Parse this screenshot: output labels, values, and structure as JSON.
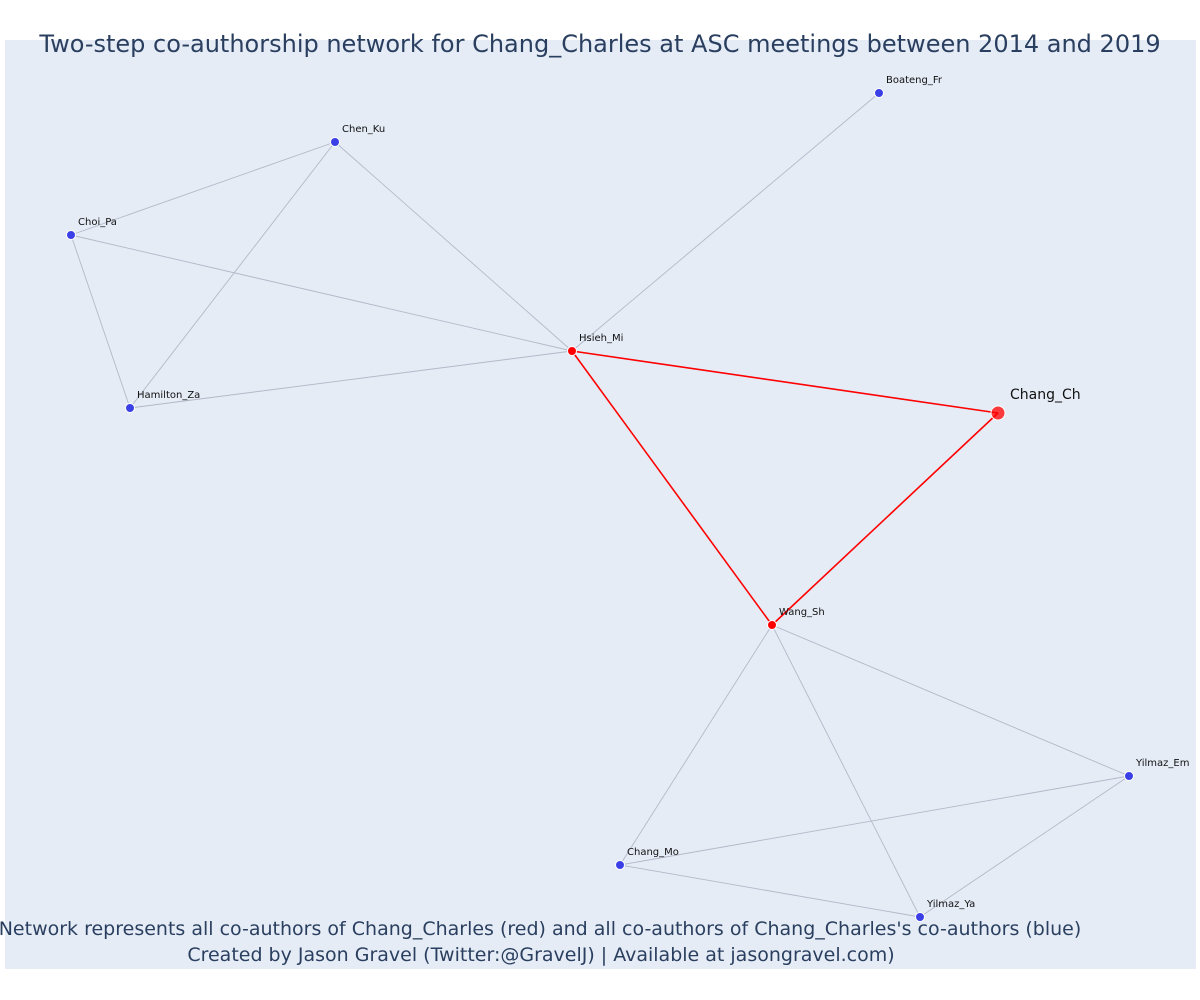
{
  "title": "Two-step co-authorship network for Chang_Charles at ASC meetings between 2014 and 2019",
  "caption": {
    "line1": "Network represents all co-authors of Chang_Charles (red) and all co-authors of Chang_Charles's co-authors (blue)",
    "line2": "Created by Jason Gravel (Twitter:@GravelJ) | Available at jasongravel.com)"
  },
  "colors": {
    "focal": "#ff0000",
    "coauthor": "#ff0000",
    "second_step": "#3b3fe6",
    "edge_muted": "#b4b8c8",
    "edge_focal": "#ff0000",
    "background": "#e5ecf6"
  },
  "nodes": [
    {
      "id": "Chang_Ch",
      "label": "Chang_Ch",
      "group": "focal"
    },
    {
      "id": "Hsieh_Mi",
      "label": "Hsieh_Mi",
      "group": "coauthor"
    },
    {
      "id": "Wang_Sh",
      "label": "Wang_Sh",
      "group": "coauthor"
    },
    {
      "id": "Boateng_Fr",
      "label": "Boateng_Fr",
      "group": "second_step"
    },
    {
      "id": "Chen_Ku",
      "label": "Chen_Ku",
      "group": "second_step"
    },
    {
      "id": "Choi_Pa",
      "label": "Choi_Pa",
      "group": "second_step"
    },
    {
      "id": "Hamilton_Za",
      "label": "Hamilton_Za",
      "group": "second_step"
    },
    {
      "id": "Yilmaz_Em",
      "label": "Yilmaz_Em",
      "group": "second_step"
    },
    {
      "id": "Chang_Mo",
      "label": "Chang_Mo",
      "group": "second_step"
    },
    {
      "id": "Yilmaz_Ya",
      "label": "Yilmaz_Ya",
      "group": "second_step"
    }
  ],
  "edges": [
    {
      "source": "Hsieh_Mi",
      "target": "Chang_Ch",
      "type": "focal"
    },
    {
      "source": "Hsieh_Mi",
      "target": "Wang_Sh",
      "type": "focal"
    },
    {
      "source": "Wang_Sh",
      "target": "Chang_Ch",
      "type": "focal"
    },
    {
      "source": "Hsieh_Mi",
      "target": "Boateng_Fr",
      "type": "muted"
    },
    {
      "source": "Hsieh_Mi",
      "target": "Chen_Ku",
      "type": "muted"
    },
    {
      "source": "Hsieh_Mi",
      "target": "Choi_Pa",
      "type": "muted"
    },
    {
      "source": "Hsieh_Mi",
      "target": "Hamilton_Za",
      "type": "muted"
    },
    {
      "source": "Chen_Ku",
      "target": "Choi_Pa",
      "type": "muted"
    },
    {
      "source": "Chen_Ku",
      "target": "Hamilton_Za",
      "type": "muted"
    },
    {
      "source": "Choi_Pa",
      "target": "Hamilton_Za",
      "type": "muted"
    },
    {
      "source": "Wang_Sh",
      "target": "Chang_Mo",
      "type": "muted"
    },
    {
      "source": "Wang_Sh",
      "target": "Yilmaz_Ya",
      "type": "muted"
    },
    {
      "source": "Wang_Sh",
      "target": "Yilmaz_Em",
      "type": "muted"
    },
    {
      "source": "Chang_Mo",
      "target": "Yilmaz_Em",
      "type": "muted"
    },
    {
      "source": "Chang_Mo",
      "target": "Yilmaz_Ya",
      "type": "muted"
    },
    {
      "source": "Yilmaz_Ya",
      "target": "Yilmaz_Em",
      "type": "muted"
    }
  ]
}
